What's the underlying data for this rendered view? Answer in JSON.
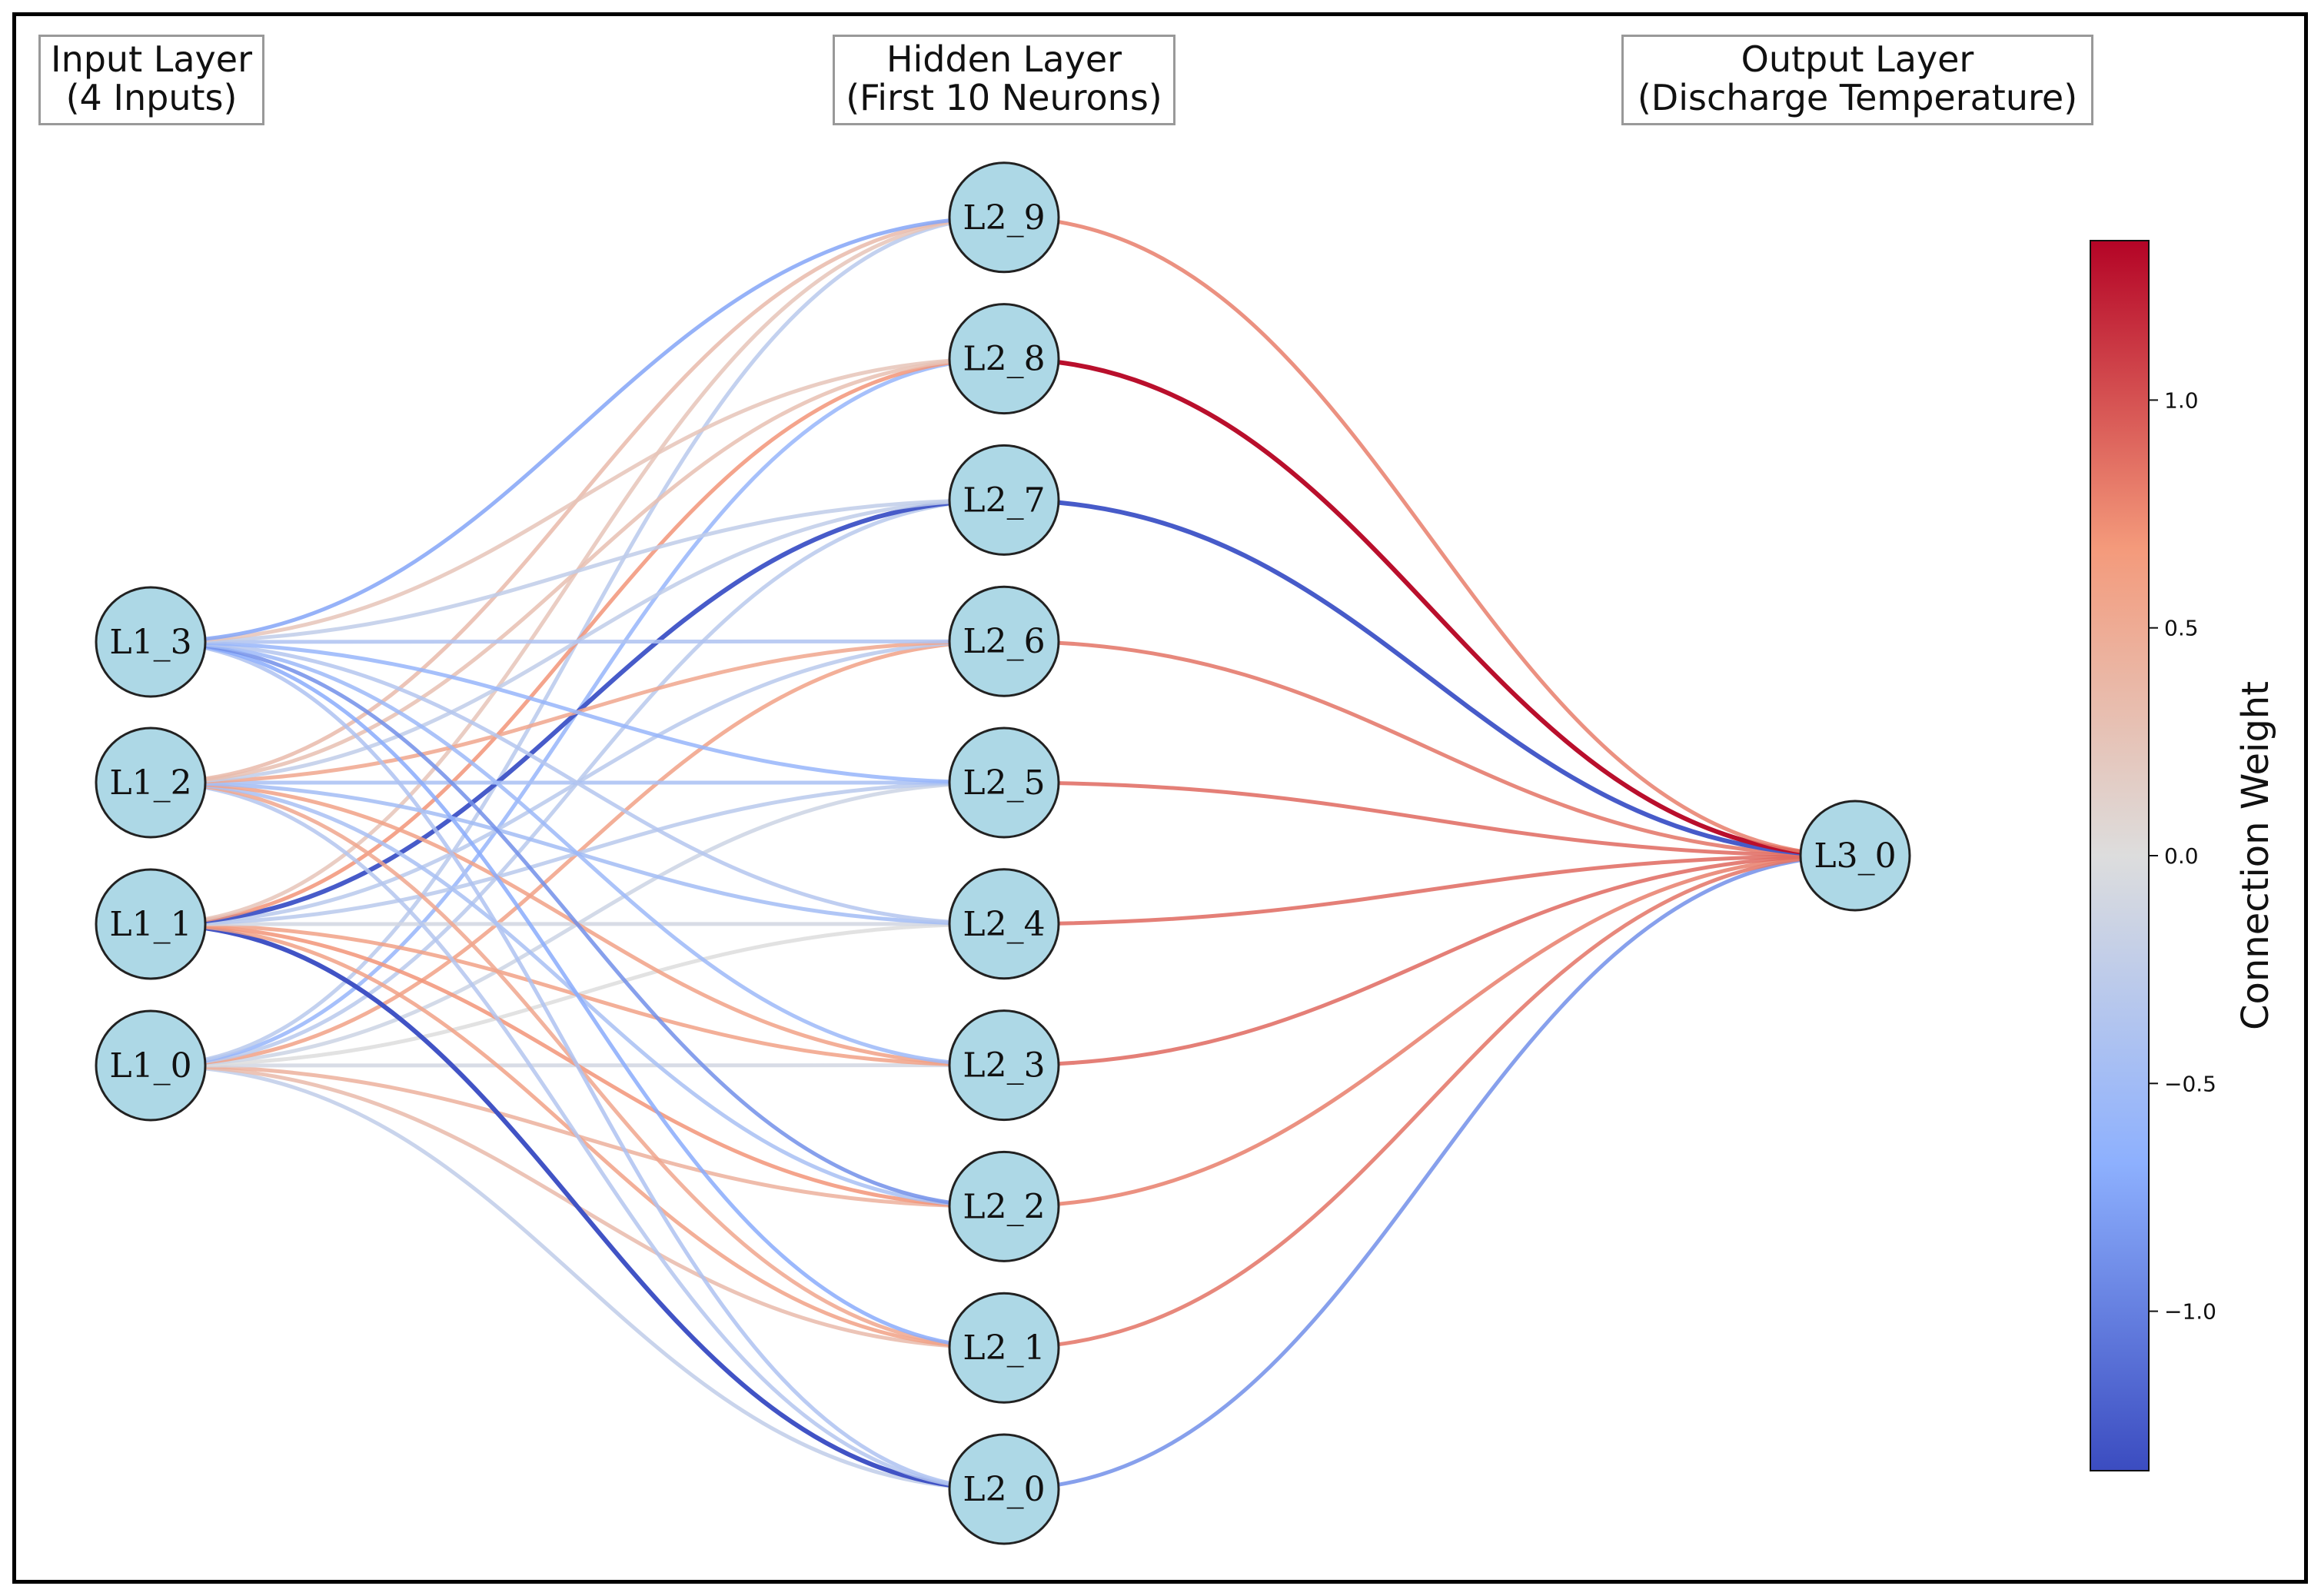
{
  "layers": {
    "input": {
      "title": "Input Layer",
      "subtitle": "(4 Inputs)"
    },
    "hidden": {
      "title": "Hidden Layer",
      "subtitle": "(First 10 Neurons)"
    },
    "output": {
      "title": "Output Layer",
      "subtitle": "(Discharge Temperature)"
    }
  },
  "nodes": {
    "input": [
      "L1_0",
      "L1_1",
      "L1_2",
      "L1_3"
    ],
    "hidden": [
      "L2_0",
      "L2_1",
      "L2_2",
      "L2_3",
      "L2_4",
      "L2_5",
      "L2_6",
      "L2_7",
      "L2_8",
      "L2_9"
    ],
    "output": [
      "L3_0"
    ]
  },
  "weights": {
    "input_hidden": [
      [
        -0.25,
        0.35,
        0.45,
        -0.1,
        0.0,
        -0.15,
        0.6,
        -0.3,
        -0.6,
        -0.3
      ],
      [
        -1.3,
        0.6,
        0.7,
        0.6,
        -0.1,
        -0.3,
        -0.3,
        -1.25,
        0.7,
        0.25
      ],
      [
        -0.35,
        0.55,
        -0.45,
        0.6,
        -0.5,
        -0.45,
        0.55,
        -0.25,
        0.3,
        0.35
      ],
      [
        -0.4,
        -0.7,
        -0.9,
        -0.55,
        -0.35,
        -0.6,
        -0.4,
        -0.25,
        0.25,
        -0.75
      ]
    ],
    "hidden_output": [
      -0.9,
      0.85,
      0.8,
      0.9,
      0.9,
      0.9,
      0.85,
      -1.25,
      1.3,
      0.8
    ]
  },
  "colorbar": {
    "title": "Connection Weight",
    "ticks": [
      1.0,
      0.5,
      0.0,
      -0.5,
      -1.0
    ],
    "tick_labels": [
      "1.0",
      "0.5",
      "0.0",
      "−0.5",
      "−1.0"
    ],
    "min": -1.35,
    "max": 1.35,
    "colors": {
      "high": "#b40426",
      "mid": "#dddddd",
      "low": "#3b4cc0"
    }
  },
  "style": {
    "node_fill": "#add8e6",
    "node_stroke": "#222222"
  }
}
